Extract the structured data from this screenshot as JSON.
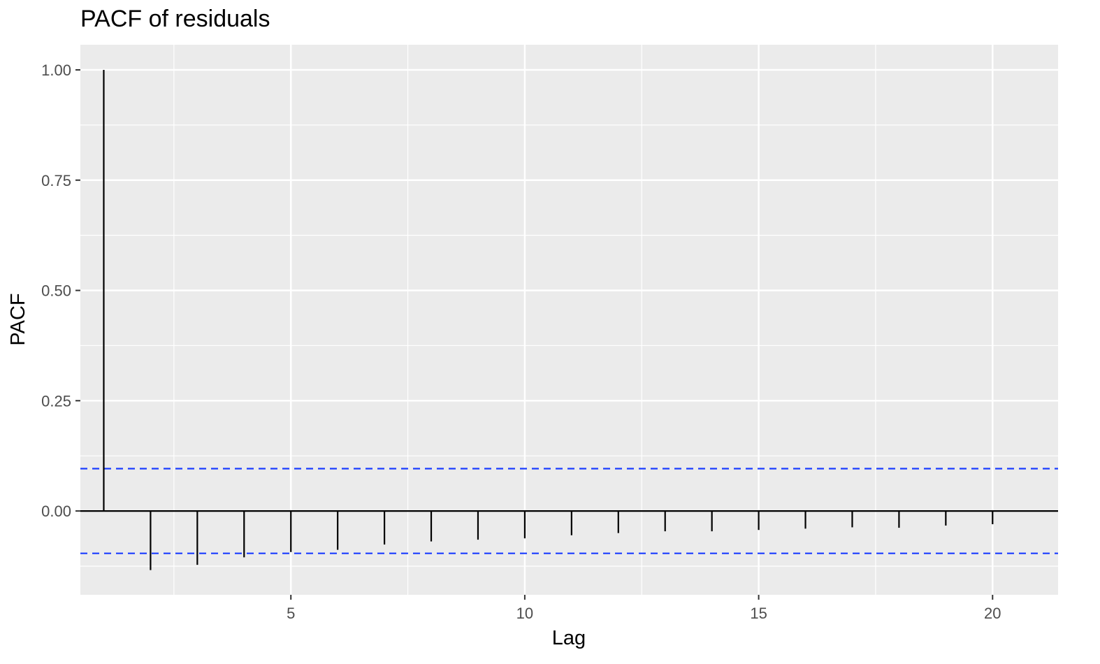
{
  "chart_data": {
    "type": "bar",
    "title": "PACF of residuals",
    "xlabel": "Lag",
    "ylabel": "PACF",
    "x": [
      1,
      2,
      3,
      4,
      5,
      6,
      7,
      8,
      9,
      10,
      11,
      12,
      13,
      14,
      15,
      16,
      17,
      18,
      19,
      20
    ],
    "values": [
      1.0,
      -0.134,
      -0.122,
      -0.105,
      -0.093,
      -0.088,
      -0.076,
      -0.069,
      -0.065,
      -0.062,
      -0.055,
      -0.05,
      -0.046,
      -0.046,
      -0.043,
      -0.04,
      -0.037,
      -0.038,
      -0.033,
      -0.03
    ],
    "xlim": [
      0.5,
      21.4
    ],
    "ylim": [
      -0.19,
      1.057
    ],
    "x_ticks": [
      5,
      10,
      15,
      20
    ],
    "x_tick_labels": [
      "5",
      "10",
      "15",
      "20"
    ],
    "y_ticks": [
      0,
      0.25,
      0.5,
      0.75,
      1
    ],
    "y_tick_labels": [
      "0.00",
      "0.25",
      "0.50",
      "0.75",
      "1.00"
    ],
    "confidence_bound": 0.096,
    "grid": true,
    "colors": {
      "panel": "#ebebeb",
      "grid": "#ffffff",
      "bar": "#000000",
      "bound": "#1a3cff"
    }
  }
}
